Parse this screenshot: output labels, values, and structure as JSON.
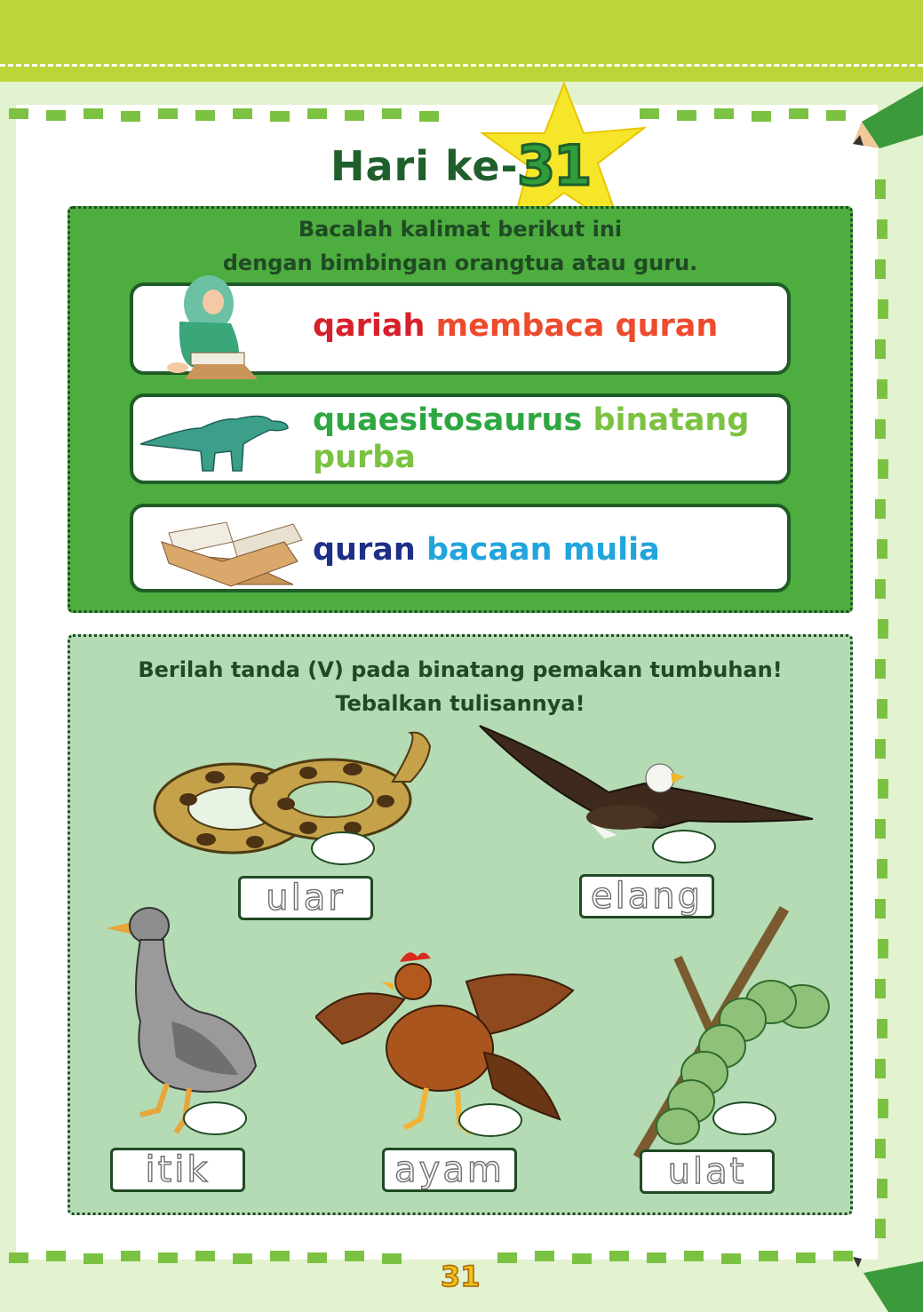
{
  "header": {
    "title_prefix": "Hari ke-",
    "day_number": "31"
  },
  "reading": {
    "instruction_line1": "Bacalah kalimat berikut ini",
    "instruction_line2": "dengan bimbingan orangtua atau guru.",
    "sentences": [
      {
        "keyword": "qariah",
        "rest": "membaca quran",
        "keyword_color": "#d8202a",
        "rest_color": "#ee4a2c",
        "illustration": "girl-reading-quran-icon"
      },
      {
        "keyword": "quaesitosaurus",
        "rest_line1": "binatang",
        "rest_line2": "purba",
        "keyword_color": "#2fa741",
        "rest_color": "#7cc242",
        "illustration": "dinosaur-icon"
      },
      {
        "keyword": "quran",
        "rest": "bacaan mulia",
        "keyword_color": "#1d2f86",
        "rest_color": "#22a4dc",
        "illustration": "quran-on-stand-icon"
      }
    ]
  },
  "activity": {
    "instruction_line1": "Berilah tanda (V) pada binatang pemakan tumbuhan!",
    "instruction_line2": "Tebalkan tulisannya!",
    "animals": [
      {
        "word": "ular",
        "icon": "snake-icon"
      },
      {
        "word": "elang",
        "icon": "eagle-icon"
      },
      {
        "word": "itik",
        "icon": "duck-icon"
      },
      {
        "word": "ayam",
        "icon": "rooster-icon"
      },
      {
        "word": "ulat",
        "icon": "caterpillar-icon"
      }
    ]
  },
  "footer": {
    "page_number": "31"
  },
  "colors": {
    "top_band": "#bcd63a",
    "reading_box": "#4ead3f",
    "activity_box": "#b4dbb4",
    "title": "#1f5f2c"
  }
}
